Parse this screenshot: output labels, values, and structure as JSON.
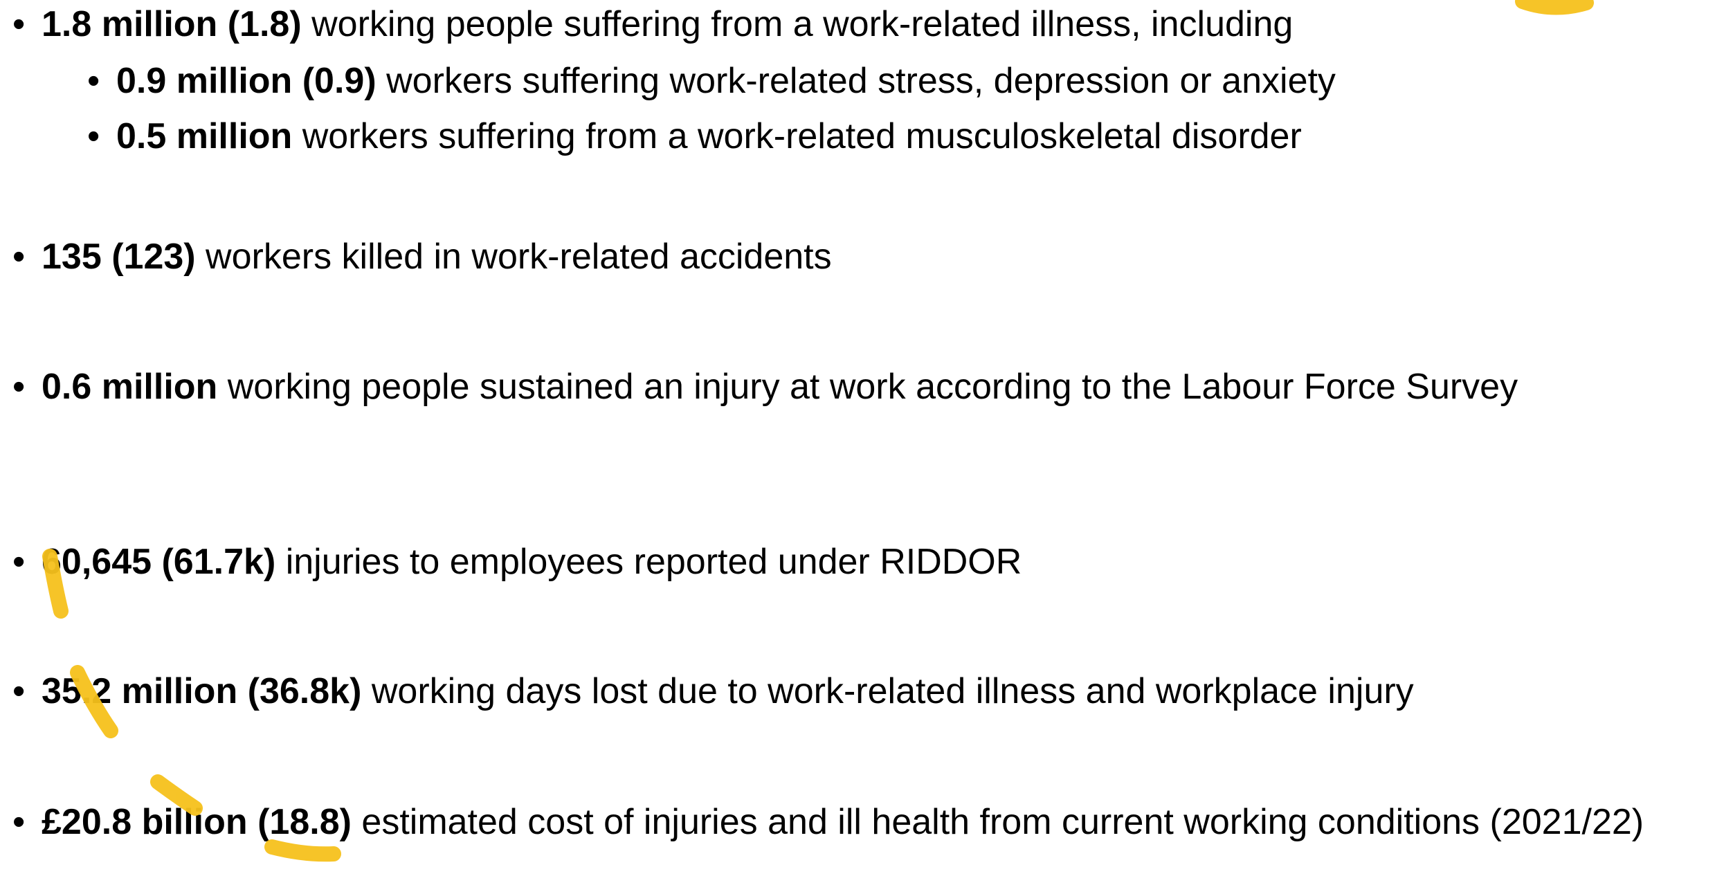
{
  "items": [
    {
      "bold": "1.8 million (1.8)",
      "text": " working people suffering from a work-related illness, including",
      "subitems": [
        {
          "bold": "0.9 million (0.9)",
          "text": " workers suffering work-related stress, depression or anxiety"
        },
        {
          "bold": "0.5 million",
          "text": " workers suffering from a work-related musculoskeletal disorder"
        }
      ]
    },
    {
      "bold": "135 (123)",
      "text": " workers killed in work-related accidents"
    },
    {
      "bold": "0.6 million",
      "text": " working people sustained an injury at work according to the Labour Force Survey"
    },
    {
      "bold": "60,645 (61.7k)",
      "text": " injuries to employees reported under RIDDOR"
    },
    {
      "bold": "35.2 million (36.8k)",
      "text": " working days lost due to work-related illness and workplace injury"
    },
    {
      "bold": "£20.8 billion (18.8)",
      "text": " estimated cost of injuries and ill health from current working conditions (2021/22)"
    }
  ]
}
